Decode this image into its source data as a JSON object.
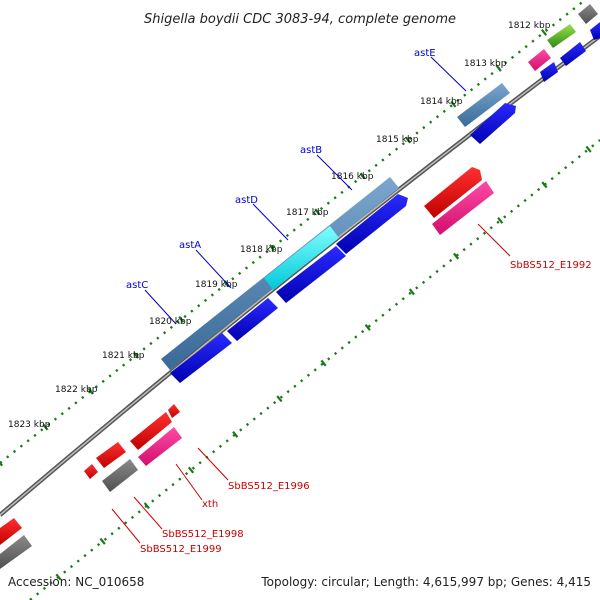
{
  "title": "Shigella boydii CDC 3083-94, complete genome",
  "footer": {
    "accession": "Accession: NC_010658",
    "topology": "Topology: circular; Length: 4,615,997 bp; Genes: 4,415"
  },
  "kbp_labels": [
    "1812 kbp",
    "1813 kbp",
    "1814 kbp",
    "1815 kbp",
    "1816 kbp",
    "1817 kbp",
    "1818 kbp",
    "1819 kbp",
    "1820 kbp",
    "1821 kbp",
    "1822 kbp",
    "1823 kbp"
  ],
  "genes_top": [
    "astE",
    "astB",
    "astD",
    "astA",
    "astC"
  ],
  "genes_bottom": [
    "SbBS512_E1992",
    "SbBS512_E1996",
    "xth",
    "SbBS512_E1998",
    "SbBS512_E1999"
  ],
  "colors": {
    "backbone": "#888888",
    "steelblue": "#4a7fb0",
    "blue": "#0000dd",
    "cyan": "#00e8e8",
    "red": "#ee0000",
    "pink": "#ee1a8c",
    "gray": "#666666",
    "green": "#44aa22",
    "tick": "#1a7a1a"
  }
}
